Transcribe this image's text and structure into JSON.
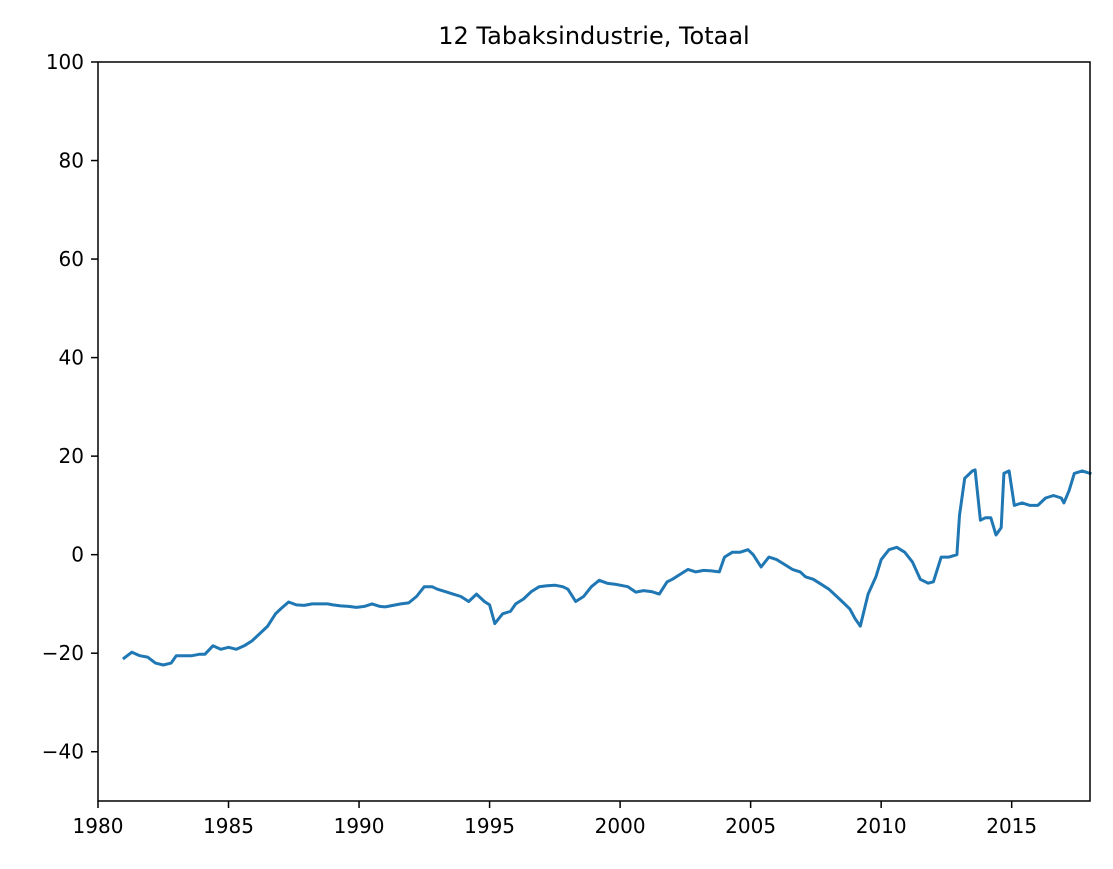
{
  "chart_data": {
    "type": "line",
    "title": "12 Tabaksindustrie, Totaal",
    "xlabel": "",
    "ylabel": "",
    "xlim": [
      1980,
      2018
    ],
    "ylim": [
      -50,
      100
    ],
    "grid": false,
    "legend": "none",
    "x_ticks": [
      1980,
      1985,
      1990,
      1995,
      2000,
      2005,
      2010,
      2015
    ],
    "x_tick_labels": [
      "1980",
      "1985",
      "1990",
      "1995",
      "2000",
      "2005",
      "2010",
      "2015"
    ],
    "y_ticks": [
      -40,
      -20,
      0,
      20,
      40,
      60,
      80,
      100
    ],
    "y_tick_labels": [
      "−40",
      "−20",
      "0",
      "20",
      "40",
      "60",
      "80",
      "100"
    ],
    "series": [
      {
        "color": "#1f77b4",
        "x": [
          1981.0,
          1981.3,
          1981.6,
          1981.9,
          1982.2,
          1982.5,
          1982.8,
          1983.0,
          1983.3,
          1983.6,
          1983.9,
          1984.1,
          1984.4,
          1984.7,
          1985.0,
          1985.3,
          1985.6,
          1985.9,
          1986.2,
          1986.5,
          1986.8,
          1987.0,
          1987.3,
          1987.6,
          1987.9,
          1988.2,
          1988.5,
          1988.8,
          1989.0,
          1989.3,
          1989.6,
          1989.9,
          1990.2,
          1990.5,
          1990.8,
          1991.0,
          1991.3,
          1991.6,
          1991.9,
          1992.2,
          1992.5,
          1992.8,
          1993.0,
          1993.3,
          1993.6,
          1993.9,
          1994.2,
          1994.5,
          1994.8,
          1995.0,
          1995.2,
          1995.5,
          1995.8,
          1996.0,
          1996.3,
          1996.6,
          1996.9,
          1997.2,
          1997.5,
          1997.8,
          1998.0,
          1998.3,
          1998.6,
          1998.9,
          1999.2,
          1999.5,
          1999.8,
          2000.0,
          2000.3,
          2000.6,
          2000.9,
          2001.2,
          2001.5,
          2001.8,
          2002.0,
          2002.3,
          2002.6,
          2002.9,
          2003.2,
          2003.5,
          2003.8,
          2004.0,
          2004.3,
          2004.6,
          2004.9,
          2005.1,
          2005.4,
          2005.7,
          2006.0,
          2006.3,
          2006.6,
          2006.9,
          2007.1,
          2007.4,
          2007.7,
          2008.0,
          2008.3,
          2008.6,
          2008.8,
          2009.0,
          2009.2,
          2009.5,
          2009.8,
          2010.0,
          2010.3,
          2010.6,
          2010.9,
          2011.2,
          2011.5,
          2011.8,
          2012.0,
          2012.3,
          2012.6,
          2012.9,
          2013.0,
          2013.2,
          2013.5,
          2013.6,
          2013.8,
          2014.0,
          2014.2,
          2014.4,
          2014.6,
          2014.7,
          2014.9,
          2015.1,
          2015.4,
          2015.7,
          2016.0,
          2016.3,
          2016.6,
          2016.9,
          2017.0,
          2017.2,
          2017.4,
          2017.7,
          2018.0
        ],
        "values": [
          -21,
          -19.8,
          -20.5,
          -20.8,
          -22,
          -22.4,
          -22,
          -20.5,
          -20.5,
          -20.5,
          -20.2,
          -20.2,
          -18.5,
          -19.2,
          -18.8,
          -19.2,
          -18.5,
          -17.5,
          -16,
          -14.5,
          -12,
          -11,
          -9.6,
          -10.2,
          -10.3,
          -10,
          -10,
          -10,
          -10.2,
          -10.4,
          -10.5,
          -10.7,
          -10.5,
          -10,
          -10.5,
          -10.6,
          -10.3,
          -10,
          -9.8,
          -8.5,
          -6.5,
          -6.5,
          -7,
          -7.5,
          -8,
          -8.5,
          -9.5,
          -8,
          -9.5,
          -10.2,
          -14,
          -12,
          -11.5,
          -10,
          -9,
          -7.5,
          -6.5,
          -6.3,
          -6.2,
          -6.5,
          -7,
          -9.5,
          -8.5,
          -6.5,
          -5.2,
          -5.8,
          -6,
          -6.2,
          -6.5,
          -7.6,
          -7.3,
          -7.5,
          -8,
          -5.5,
          -5,
          -4,
          -3,
          -3.5,
          -3.2,
          -3.3,
          -3.5,
          -0.5,
          0.5,
          0.5,
          1,
          0,
          -2.5,
          -0.5,
          -1,
          -2,
          -3,
          -3.5,
          -4.5,
          -5,
          -6,
          -7,
          -8.5,
          -10,
          -11,
          -13,
          -14.5,
          -8,
          -4.5,
          -1,
          1,
          1.5,
          0.5,
          -1.5,
          -5,
          -5.8,
          -5.5,
          -0.5,
          -0.5,
          0,
          8,
          15.5,
          17,
          17.2,
          7,
          7.5,
          7.5,
          4,
          5.5,
          16.5,
          17,
          10,
          10.5,
          10,
          10,
          11.5,
          12,
          11.5,
          10.5,
          13,
          16.5,
          17,
          16.5
        ]
      }
    ]
  }
}
